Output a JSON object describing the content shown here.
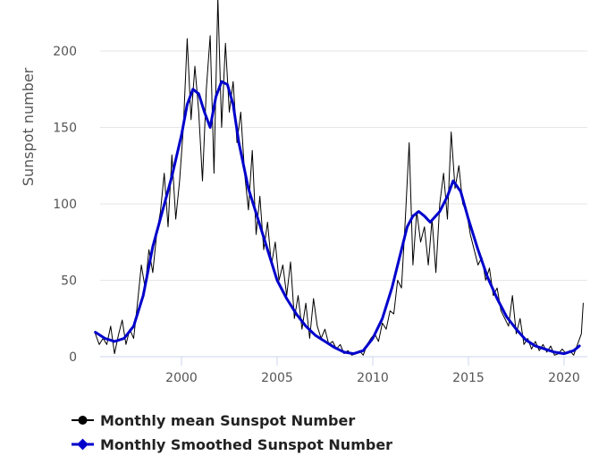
{
  "chart_data": {
    "type": "line",
    "title": "",
    "ylabel": "Sunspot number",
    "xlabel": "",
    "xlim": [
      1995.5,
      2021.0
    ],
    "ylim": [
      0,
      235
    ],
    "x_ticks": [
      2000,
      2005,
      2010,
      2015,
      2020
    ],
    "y_ticks": [
      0,
      50,
      100,
      150,
      200
    ],
    "grid": "horizontal",
    "legend_position": "bottom-left",
    "series": [
      {
        "name": "Monthly mean Sunspot Number",
        "color": "#000000",
        "line_width": 1,
        "points": [
          [
            1995.5,
            15
          ],
          [
            1995.7,
            8
          ],
          [
            1995.9,
            12
          ],
          [
            1996.1,
            8
          ],
          [
            1996.3,
            20
          ],
          [
            1996.5,
            2
          ],
          [
            1996.7,
            14
          ],
          [
            1996.9,
            24
          ],
          [
            1997.1,
            8
          ],
          [
            1997.3,
            18
          ],
          [
            1997.5,
            12
          ],
          [
            1997.7,
            35
          ],
          [
            1997.9,
            60
          ],
          [
            1998.1,
            45
          ],
          [
            1998.3,
            70
          ],
          [
            1998.5,
            55
          ],
          [
            1998.7,
            80
          ],
          [
            1998.9,
            95
          ],
          [
            1999.1,
            120
          ],
          [
            1999.3,
            85
          ],
          [
            1999.5,
            132
          ],
          [
            1999.7,
            90
          ],
          [
            1999.9,
            115
          ],
          [
            2000.1,
            150
          ],
          [
            2000.3,
            208
          ],
          [
            2000.5,
            155
          ],
          [
            2000.7,
            190
          ],
          [
            2000.9,
            160
          ],
          [
            2001.1,
            115
          ],
          [
            2001.3,
            175
          ],
          [
            2001.5,
            210
          ],
          [
            2001.7,
            120
          ],
          [
            2001.9,
            235
          ],
          [
            2002.1,
            150
          ],
          [
            2002.3,
            205
          ],
          [
            2002.5,
            160
          ],
          [
            2002.7,
            180
          ],
          [
            2002.9,
            140
          ],
          [
            2003.1,
            160
          ],
          [
            2003.3,
            120
          ],
          [
            2003.5,
            96
          ],
          [
            2003.7,
            135
          ],
          [
            2003.9,
            80
          ],
          [
            2004.1,
            105
          ],
          [
            2004.3,
            70
          ],
          [
            2004.5,
            88
          ],
          [
            2004.7,
            60
          ],
          [
            2004.9,
            75
          ],
          [
            2005.1,
            50
          ],
          [
            2005.3,
            60
          ],
          [
            2005.5,
            40
          ],
          [
            2005.7,
            62
          ],
          [
            2005.9,
            25
          ],
          [
            2006.1,
            40
          ],
          [
            2006.3,
            18
          ],
          [
            2006.5,
            35
          ],
          [
            2006.7,
            12
          ],
          [
            2006.9,
            38
          ],
          [
            2007.1,
            20
          ],
          [
            2007.3,
            12
          ],
          [
            2007.5,
            18
          ],
          [
            2007.7,
            8
          ],
          [
            2007.9,
            10
          ],
          [
            2008.1,
            5
          ],
          [
            2008.3,
            8
          ],
          [
            2008.5,
            2
          ],
          [
            2008.7,
            4
          ],
          [
            2008.9,
            1
          ],
          [
            2009.1,
            2
          ],
          [
            2009.3,
            4
          ],
          [
            2009.5,
            1
          ],
          [
            2009.7,
            8
          ],
          [
            2009.9,
            12
          ],
          [
            2010.1,
            15
          ],
          [
            2010.3,
            10
          ],
          [
            2010.5,
            22
          ],
          [
            2010.7,
            18
          ],
          [
            2010.9,
            30
          ],
          [
            2011.1,
            28
          ],
          [
            2011.3,
            50
          ],
          [
            2011.5,
            45
          ],
          [
            2011.7,
            90
          ],
          [
            2011.9,
            140
          ],
          [
            2012.1,
            60
          ],
          [
            2012.3,
            95
          ],
          [
            2012.5,
            75
          ],
          [
            2012.7,
            85
          ],
          [
            2012.9,
            60
          ],
          [
            2013.1,
            90
          ],
          [
            2013.3,
            55
          ],
          [
            2013.5,
            100
          ],
          [
            2013.7,
            120
          ],
          [
            2013.9,
            90
          ],
          [
            2014.1,
            147
          ],
          [
            2014.3,
            110
          ],
          [
            2014.5,
            125
          ],
          [
            2014.7,
            100
          ],
          [
            2014.9,
            95
          ],
          [
            2015.1,
            80
          ],
          [
            2015.3,
            70
          ],
          [
            2015.5,
            60
          ],
          [
            2015.7,
            65
          ],
          [
            2015.9,
            50
          ],
          [
            2016.1,
            58
          ],
          [
            2016.3,
            40
          ],
          [
            2016.5,
            45
          ],
          [
            2016.7,
            30
          ],
          [
            2016.9,
            25
          ],
          [
            2017.1,
            20
          ],
          [
            2017.3,
            40
          ],
          [
            2017.5,
            15
          ],
          [
            2017.7,
            25
          ],
          [
            2017.9,
            8
          ],
          [
            2018.1,
            12
          ],
          [
            2018.3,
            5
          ],
          [
            2018.5,
            10
          ],
          [
            2018.7,
            4
          ],
          [
            2018.9,
            8
          ],
          [
            2019.1,
            3
          ],
          [
            2019.3,
            7
          ],
          [
            2019.5,
            1
          ],
          [
            2019.7,
            2
          ],
          [
            2019.9,
            5
          ],
          [
            2020.1,
            2
          ],
          [
            2020.3,
            4
          ],
          [
            2020.5,
            1
          ],
          [
            2020.7,
            8
          ],
          [
            2020.9,
            15
          ],
          [
            2021.0,
            35
          ]
        ]
      },
      {
        "name": "Monthly Smoothed Sunspot Number",
        "color": "#0000cc",
        "line_width": 3,
        "points": [
          [
            1995.5,
            16
          ],
          [
            1996.0,
            12
          ],
          [
            1996.5,
            10
          ],
          [
            1997.0,
            12
          ],
          [
            1997.5,
            20
          ],
          [
            1998.0,
            40
          ],
          [
            1998.5,
            72
          ],
          [
            1999.0,
            95
          ],
          [
            1999.5,
            118
          ],
          [
            2000.0,
            145
          ],
          [
            2000.3,
            165
          ],
          [
            2000.6,
            175
          ],
          [
            2000.9,
            172
          ],
          [
            2001.2,
            160
          ],
          [
            2001.5,
            150
          ],
          [
            2001.8,
            170
          ],
          [
            2002.1,
            180
          ],
          [
            2002.4,
            178
          ],
          [
            2002.7,
            165
          ],
          [
            2003.0,
            140
          ],
          [
            2003.5,
            110
          ],
          [
            2004.0,
            90
          ],
          [
            2004.5,
            70
          ],
          [
            2005.0,
            50
          ],
          [
            2005.5,
            38
          ],
          [
            2006.0,
            28
          ],
          [
            2006.5,
            20
          ],
          [
            2007.0,
            14
          ],
          [
            2007.5,
            10
          ],
          [
            2008.0,
            6
          ],
          [
            2008.5,
            3
          ],
          [
            2009.0,
            2
          ],
          [
            2009.5,
            4
          ],
          [
            2010.0,
            12
          ],
          [
            2010.5,
            25
          ],
          [
            2011.0,
            45
          ],
          [
            2011.5,
            70
          ],
          [
            2011.8,
            85
          ],
          [
            2012.1,
            92
          ],
          [
            2012.4,
            95
          ],
          [
            2012.7,
            92
          ],
          [
            2013.0,
            88
          ],
          [
            2013.5,
            95
          ],
          [
            2013.9,
            105
          ],
          [
            2014.2,
            115
          ],
          [
            2014.6,
            108
          ],
          [
            2015.0,
            90
          ],
          [
            2015.5,
            70
          ],
          [
            2016.0,
            52
          ],
          [
            2016.5,
            38
          ],
          [
            2017.0,
            26
          ],
          [
            2017.5,
            18
          ],
          [
            2018.0,
            11
          ],
          [
            2018.5,
            7
          ],
          [
            2019.0,
            5
          ],
          [
            2019.5,
            3
          ],
          [
            2020.0,
            2
          ],
          [
            2020.5,
            4
          ],
          [
            2020.8,
            7
          ]
        ]
      }
    ]
  }
}
